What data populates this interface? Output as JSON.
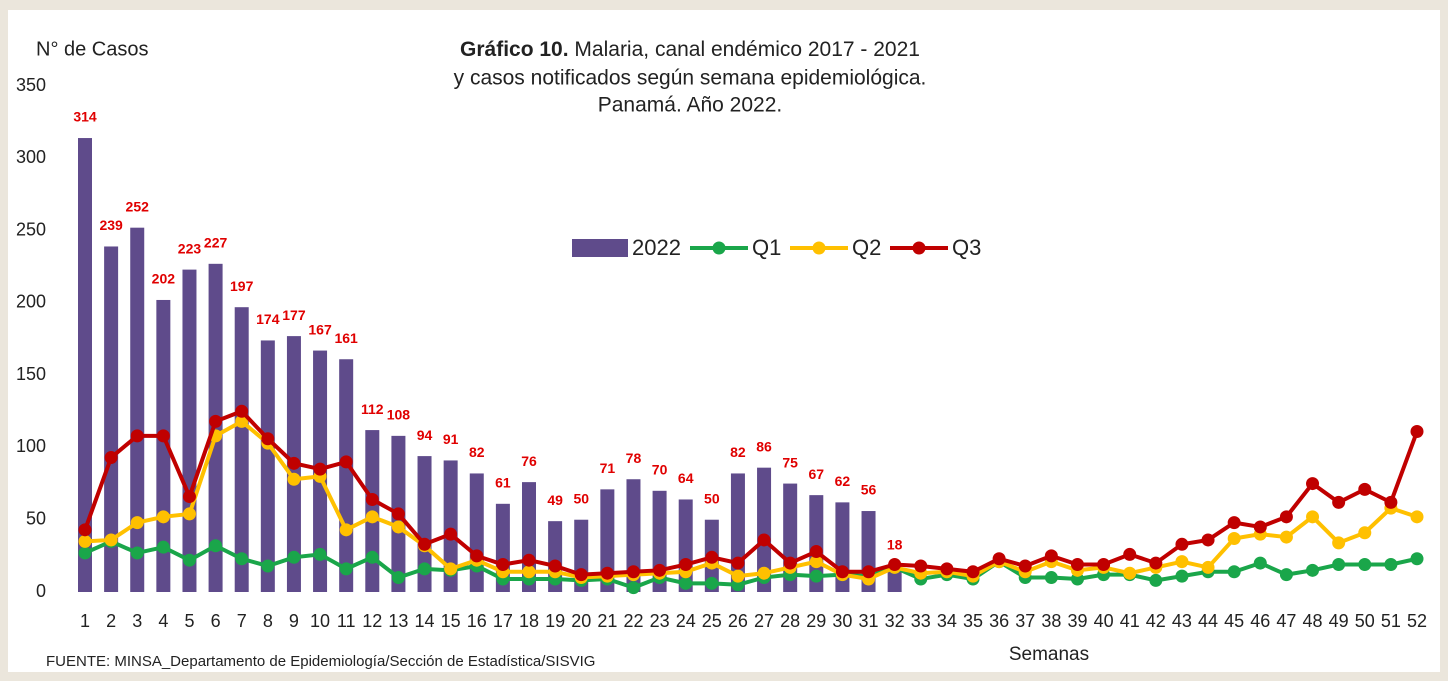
{
  "chart_data": {
    "type": "bar_line",
    "title": {
      "bold": "Gráfico 10.",
      "lines": [
        "Malaria, canal endémico 2017 - 2021",
        "y casos notificados según semana epidemiológica.",
        "Panamá. Año 2022."
      ]
    },
    "y_label": "N° de Casos",
    "x_label": "Semanas",
    "source": "FUENTE: MINSA_Departamento de Epidemiología/Sección de Estadística/SISVIG",
    "categories": [
      1,
      2,
      3,
      4,
      5,
      6,
      7,
      8,
      9,
      10,
      11,
      12,
      13,
      14,
      15,
      16,
      17,
      18,
      19,
      20,
      21,
      22,
      23,
      24,
      25,
      26,
      27,
      28,
      29,
      30,
      31,
      32,
      33,
      34,
      35,
      36,
      37,
      38,
      39,
      40,
      41,
      42,
      43,
      44,
      45,
      46,
      47,
      48,
      49,
      50,
      51,
      52
    ],
    "ylim": [
      0,
      350
    ],
    "yticks": [
      0,
      50,
      100,
      150,
      200,
      250,
      300,
      350
    ],
    "grid": false,
    "series": [
      {
        "name": "2022",
        "type": "bar",
        "color": "#5f4b8b",
        "label_color": "#e00000",
        "values": [
          314,
          239,
          252,
          202,
          223,
          227,
          197,
          174,
          177,
          167,
          161,
          112,
          108,
          94,
          91,
          82,
          61,
          76,
          49,
          50,
          71,
          78,
          70,
          64,
          50,
          82,
          86,
          75,
          67,
          62,
          56,
          18,
          null,
          null,
          null,
          null,
          null,
          null,
          null,
          null,
          null,
          null,
          null,
          null,
          null,
          null,
          null,
          null,
          null,
          null,
          null,
          null
        ]
      },
      {
        "name": "Q1",
        "type": "line",
        "color": "#1aa64a",
        "values": [
          27,
          35,
          27,
          31,
          22,
          32,
          23,
          18,
          24,
          26,
          16,
          24,
          10,
          16,
          15,
          18,
          9,
          9,
          9,
          8,
          9,
          3,
          10,
          6,
          6,
          5,
          10,
          12,
          11,
          12,
          11,
          17,
          9,
          12,
          9,
          21,
          10,
          10,
          9,
          12,
          12,
          8,
          11,
          14,
          14,
          20,
          12,
          15,
          19,
          19,
          19,
          23
        ]
      },
      {
        "name": "Q2",
        "type": "line",
        "color": "#ffc000",
        "values": [
          35,
          36,
          48,
          52,
          54,
          108,
          118,
          103,
          78,
          80,
          43,
          52,
          45,
          32,
          16,
          22,
          14,
          14,
          14,
          10,
          11,
          12,
          13,
          14,
          20,
          11,
          13,
          17,
          21,
          12,
          9,
          17,
          13,
          14,
          11,
          21,
          14,
          21,
          15,
          17,
          13,
          17,
          21,
          17,
          37,
          40,
          38,
          52,
          34,
          41,
          58,
          52
        ]
      },
      {
        "name": "Q3",
        "type": "line",
        "color": "#c00000",
        "values": [
          43,
          93,
          108,
          108,
          66,
          118,
          125,
          106,
          89,
          85,
          90,
          64,
          54,
          33,
          40,
          25,
          19,
          22,
          18,
          12,
          13,
          14,
          15,
          19,
          24,
          20,
          36,
          20,
          28,
          14,
          14,
          19,
          18,
          16,
          14,
          23,
          18,
          25,
          19,
          19,
          26,
          20,
          33,
          36,
          48,
          45,
          52,
          75,
          62,
          71,
          62,
          111
        ]
      }
    ]
  }
}
